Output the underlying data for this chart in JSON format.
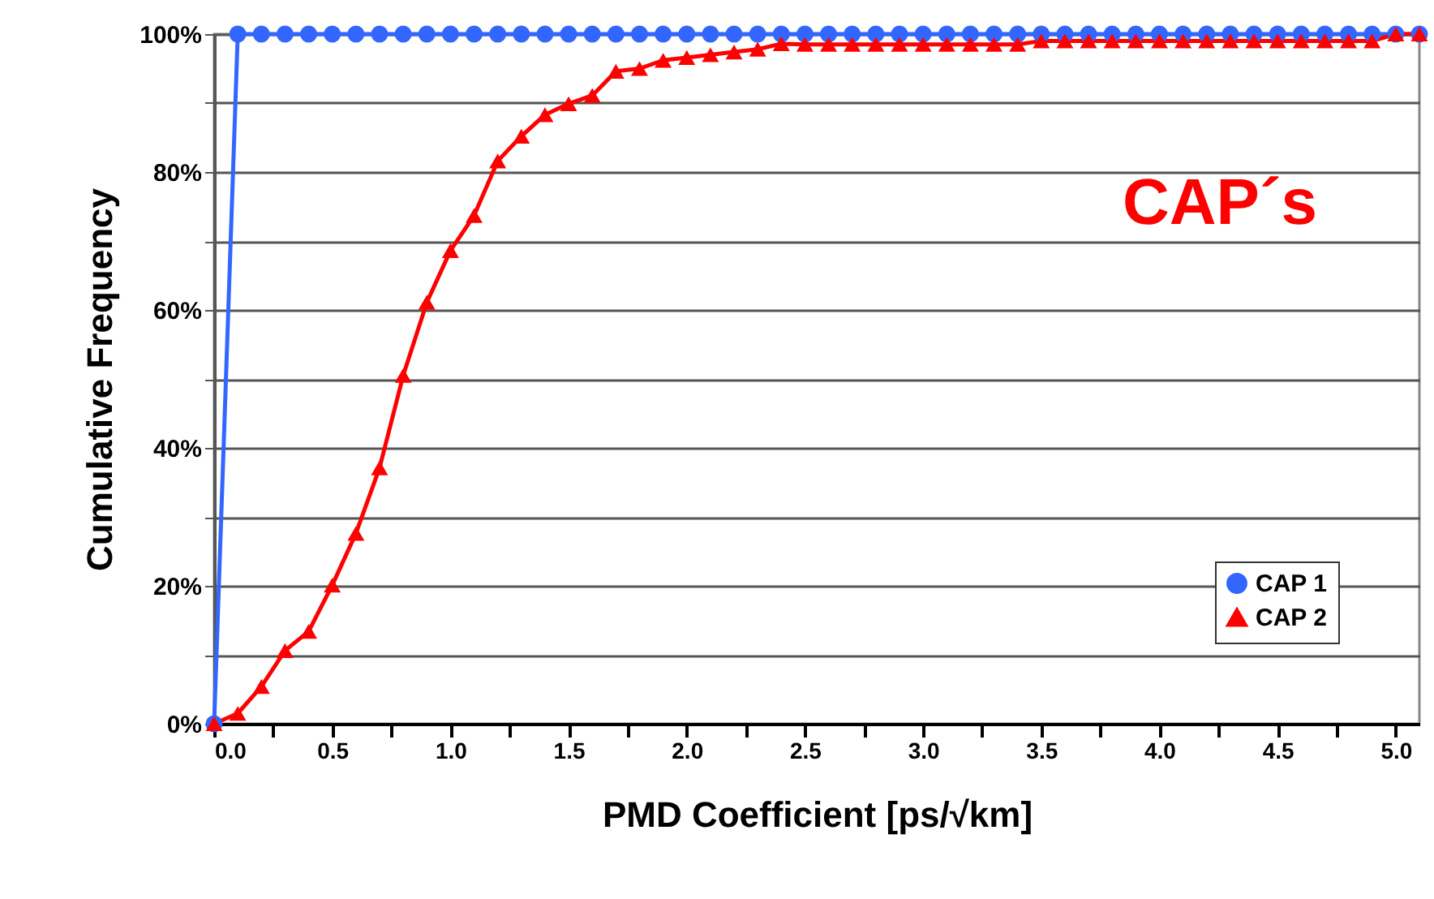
{
  "chart_data": {
    "type": "line",
    "xlabel": "PMD Coefficient [ps/√km]",
    "ylabel": "Cumulative Frequency",
    "annotations": [
      "CAP´s"
    ],
    "x": [
      0.0,
      0.1,
      0.2,
      0.3,
      0.4,
      0.5,
      0.6,
      0.7,
      0.8,
      0.9,
      1.0,
      1.1,
      1.2,
      1.3,
      1.4,
      1.5,
      1.6,
      1.7,
      1.8,
      1.9,
      2.0,
      2.1,
      2.2,
      2.3,
      2.4,
      2.5,
      2.6,
      2.7,
      2.8,
      2.9,
      3.0,
      3.1,
      3.2,
      3.3,
      3.4,
      3.5,
      3.6,
      3.7,
      3.8,
      3.9,
      4.0,
      4.1,
      4.2,
      4.3,
      4.4,
      4.5,
      4.6,
      4.7,
      4.8,
      4.9,
      5.0,
      5.1
    ],
    "series": [
      {
        "name": "CAP 1",
        "color": "#3366ff",
        "marker": "circle",
        "values": [
          0,
          100,
          100,
          100,
          100,
          100,
          100,
          100,
          100,
          100,
          100,
          100,
          100,
          100,
          100,
          100,
          100,
          100,
          100,
          100,
          100,
          100,
          100,
          100,
          100,
          100,
          100,
          100,
          100,
          100,
          100,
          100,
          100,
          100,
          100,
          100,
          100,
          100,
          100,
          100,
          100,
          100,
          100,
          100,
          100,
          100,
          100,
          100,
          100,
          100,
          100,
          100
        ]
      },
      {
        "name": "CAP 2",
        "color": "#ff0000",
        "marker": "triangle",
        "values": [
          0,
          1.5,
          5.4,
          10.6,
          13.4,
          20.1,
          27.6,
          37.1,
          50.5,
          61.1,
          68.6,
          73.7,
          81.6,
          85.2,
          88.3,
          89.9,
          91.1,
          94.6,
          95,
          96.2,
          96.6,
          97,
          97.4,
          97.8,
          98.6,
          98.5,
          98.5,
          98.5,
          98.5,
          98.5,
          98.5,
          98.5,
          98.5,
          98.5,
          98.5,
          99,
          99,
          99,
          99,
          99,
          99,
          99,
          99,
          99,
          99,
          99,
          99,
          99,
          99,
          99,
          100,
          100
        ]
      }
    ],
    "xlim": [
      0,
      5.1
    ],
    "xticks": [
      {
        "value": 0,
        "label": "0.0"
      },
      {
        "value": 0.25,
        "label": null
      },
      {
        "value": 0.5,
        "label": "0.5"
      },
      {
        "value": 0.75,
        "label": null
      },
      {
        "value": 1,
        "label": "1.0"
      },
      {
        "value": 1.25,
        "label": null
      },
      {
        "value": 1.5,
        "label": "1.5"
      },
      {
        "value": 1.75,
        "label": null
      },
      {
        "value": 2,
        "label": "2.0"
      },
      {
        "value": 2.25,
        "label": null
      },
      {
        "value": 2.5,
        "label": "2.5"
      },
      {
        "value": 2.75,
        "label": null
      },
      {
        "value": 3,
        "label": "3.0"
      },
      {
        "value": 3.25,
        "label": null
      },
      {
        "value": 3.5,
        "label": "3.5"
      },
      {
        "value": 3.75,
        "label": null
      },
      {
        "value": 4,
        "label": "4.0"
      },
      {
        "value": 4.25,
        "label": null
      },
      {
        "value": 4.5,
        "label": "4.5"
      },
      {
        "value": 4.75,
        "label": null
      },
      {
        "value": 5,
        "label": "5.0"
      }
    ],
    "ylim": [
      0,
      100
    ],
    "yticks": [
      {
        "value": 0,
        "label": "0%"
      },
      {
        "value": 10,
        "label": null
      },
      {
        "value": 20,
        "label": "20%"
      },
      {
        "value": 30,
        "label": null
      },
      {
        "value": 40,
        "label": "40%"
      },
      {
        "value": 50,
        "label": null
      },
      {
        "value": 60,
        "label": "60%"
      },
      {
        "value": 70,
        "label": null
      },
      {
        "value": 80,
        "label": "80%"
      },
      {
        "value": 90,
        "label": null
      },
      {
        "value": 100,
        "label": "100%"
      }
    ],
    "grid": "y",
    "legend": "bottom right",
    "line_style": "solid"
  }
}
